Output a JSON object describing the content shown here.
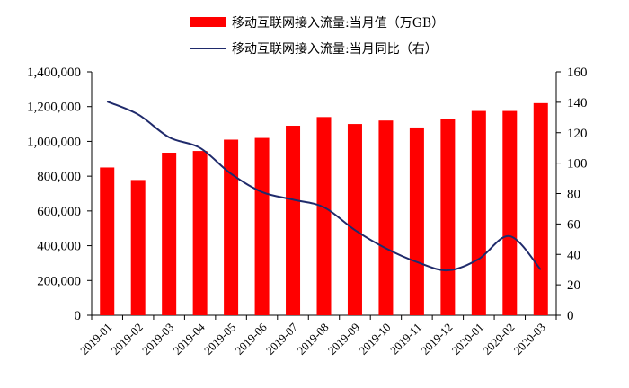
{
  "chart_data": {
    "type": "bar",
    "categories": [
      "2019-01",
      "2019-02",
      "2019-03",
      "2019-04",
      "2019-05",
      "2019-06",
      "2019-07",
      "2019-08",
      "2019-09",
      "2019-10",
      "2019-11",
      "2019-12",
      "2020-01",
      "2020-02",
      "2020-03"
    ],
    "series": [
      {
        "name": "移动互联网接入流量:当月值（万GB）",
        "type": "bar",
        "axis": "left",
        "color": "#ff0000",
        "values": [
          850000,
          778000,
          935000,
          945000,
          1010000,
          1020000,
          1090000,
          1140000,
          1100000,
          1120000,
          1080000,
          1130000,
          1175000,
          1175000,
          1220000
        ]
      },
      {
        "name": "移动互联网接入流量:当月同比（右）",
        "type": "line",
        "axis": "right",
        "color": "#1f2a6b",
        "values": [
          140.5,
          132,
          117,
          110,
          93,
          81,
          76,
          71,
          56,
          44,
          35,
          29.5,
          37,
          52,
          30
        ]
      }
    ],
    "yleft": {
      "ylim": [
        0,
        1400000
      ],
      "ticks": [
        "0",
        "200,000",
        "400,000",
        "600,000",
        "800,000",
        "1,000,000",
        "1,200,000",
        "1,400,000"
      ],
      "tick_values": [
        0,
        200000,
        400000,
        600000,
        800000,
        1000000,
        1200000,
        1400000
      ]
    },
    "yright": {
      "ylim": [
        0,
        160
      ],
      "ticks": [
        "0",
        "20",
        "40",
        "60",
        "80",
        "100",
        "120",
        "140",
        "160"
      ],
      "tick_values": [
        0,
        20,
        40,
        60,
        80,
        100,
        120,
        140,
        160
      ]
    },
    "grid": false,
    "legend_position": "top-center"
  }
}
